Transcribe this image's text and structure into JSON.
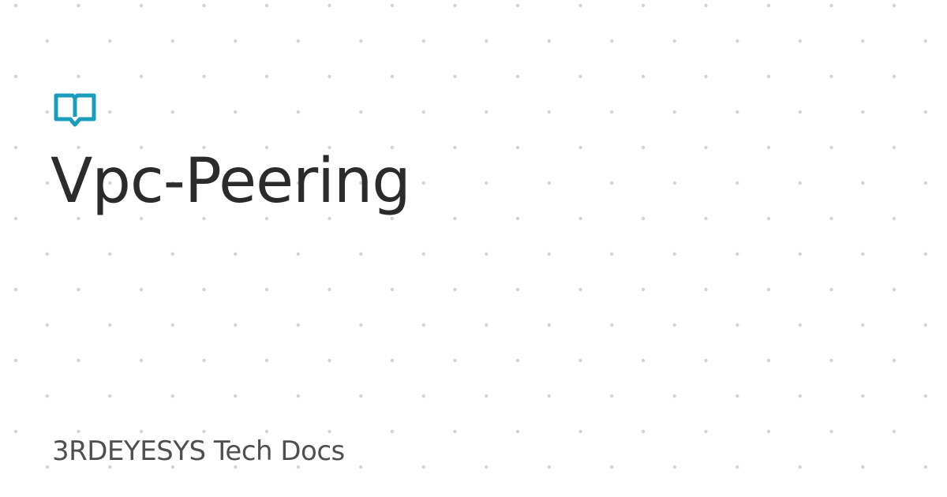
{
  "title": "Vpc-Peering",
  "site_name": "3RDEYESYS Tech Docs",
  "icons": {
    "logo": "open-book-icon"
  },
  "colors": {
    "background": "#ffffff",
    "title": "#2b2b2b",
    "site_name": "#4f4f4f",
    "logo": "#1a9cbb",
    "dots": "#d4d4d4"
  }
}
